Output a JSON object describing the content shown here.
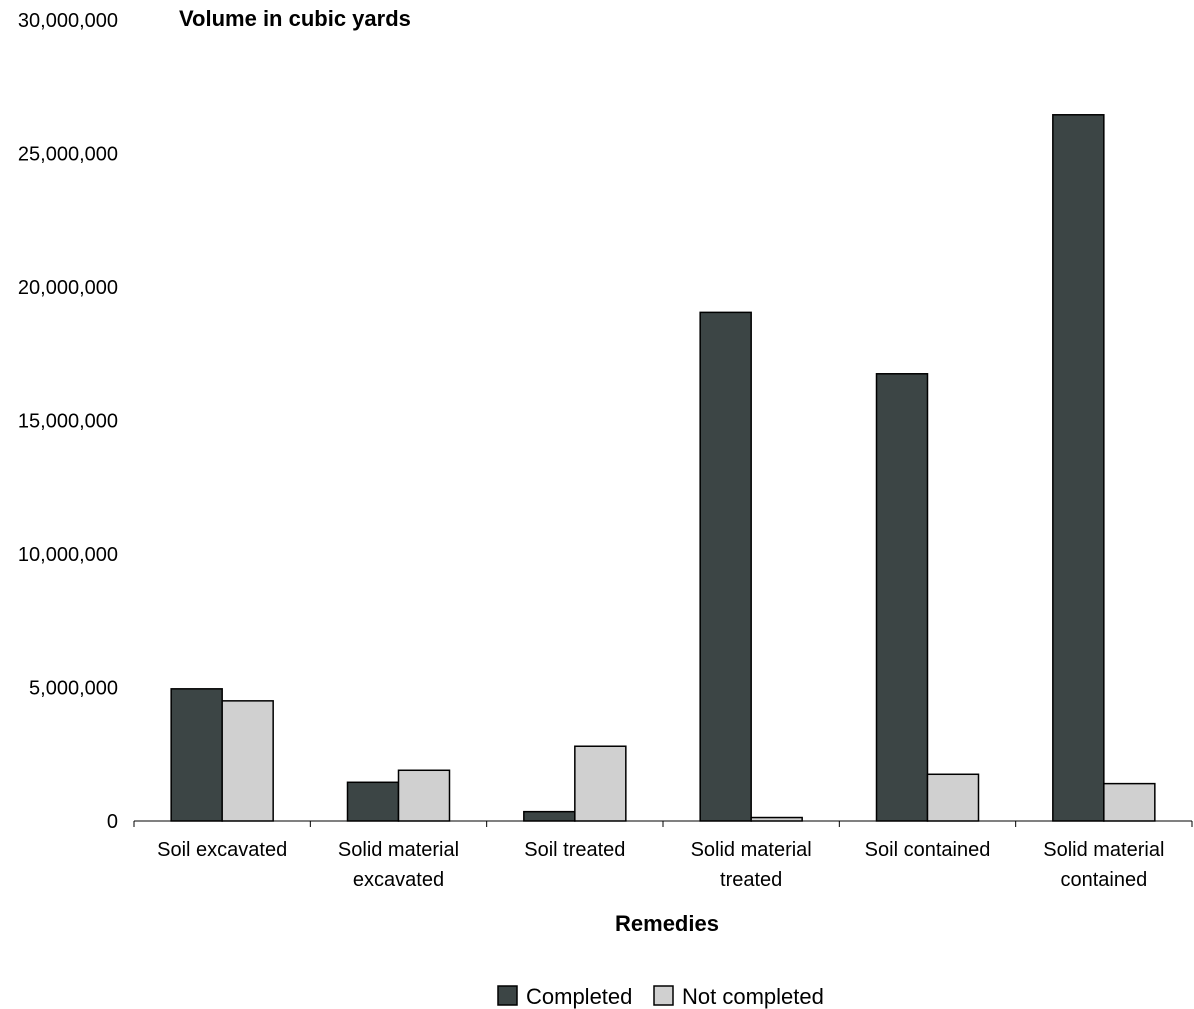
{
  "chart_data": {
    "type": "bar",
    "ylabel": "Volume in cubic yards",
    "xlabel": "Remedies",
    "ylim": [
      0,
      30000000
    ],
    "yticks": [
      {
        "value": 0,
        "label": "0"
      },
      {
        "value": 5000000,
        "label": "5,000,000"
      },
      {
        "value": 10000000,
        "label": "10,000,000"
      },
      {
        "value": 15000000,
        "label": "15,000,000"
      },
      {
        "value": 20000000,
        "label": "20,000,000"
      },
      {
        "value": 25000000,
        "label": "25,000,000"
      },
      {
        "value": 30000000,
        "label": "30,000,000"
      }
    ],
    "categories": [
      [
        "Soil excavated"
      ],
      [
        "Solid material",
        "excavated"
      ],
      [
        "Soil treated"
      ],
      [
        "Solid material",
        "treated"
      ],
      [
        "Soil contained"
      ],
      [
        "Solid material",
        "contained"
      ]
    ],
    "series": [
      {
        "name": "Completed",
        "color": "#3c4545",
        "values": [
          4950000,
          1450000,
          350000,
          19050000,
          16750000,
          26450000
        ]
      },
      {
        "name": "Not completed",
        "color": "#d0d0d0",
        "values": [
          4500000,
          1900000,
          2800000,
          130000,
          1750000,
          1400000
        ]
      }
    ],
    "grid": false,
    "legend_position": "bottom-center"
  }
}
